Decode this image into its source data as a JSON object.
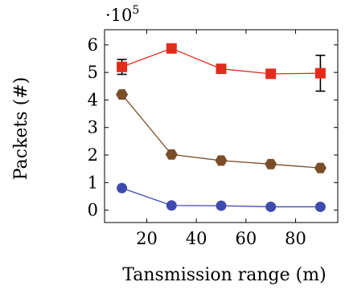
{
  "chart_data": {
    "type": "line",
    "xlabel": "Tansmission range (m)",
    "ylabel": "Packets (#)",
    "y_multiplier": "·10",
    "y_multiplier_exponent": "5",
    "xlim": [
      3,
      97
    ],
    "ylim": [
      -0.45,
      6.55
    ],
    "xticks": [
      20,
      40,
      60,
      80
    ],
    "yticks": [
      0,
      1,
      2,
      3,
      4,
      5,
      6
    ],
    "grid": false,
    "legend": "none",
    "series": [
      {
        "marker": "square",
        "color": "#e32a1d",
        "x": [
          10,
          30,
          50,
          70,
          90
        ],
        "y": [
          5.2,
          5.87,
          5.13,
          4.95,
          4.97
        ],
        "error": [
          0.27,
          0,
          0.1,
          0,
          0.65
        ]
      },
      {
        "marker": "hexagon",
        "color": "#7a4e27",
        "x": [
          10,
          30,
          50,
          70,
          90
        ],
        "y": [
          4.2,
          2.02,
          1.8,
          1.67,
          1.53
        ],
        "error": [
          0,
          0,
          0,
          0,
          0
        ]
      },
      {
        "marker": "circle",
        "color": "#3e4aad",
        "x": [
          10,
          30,
          50,
          70,
          90
        ],
        "y": [
          0.8,
          0.17,
          0.16,
          0.12,
          0.12
        ],
        "error": [
          0,
          0,
          0,
          0,
          0
        ]
      }
    ]
  }
}
